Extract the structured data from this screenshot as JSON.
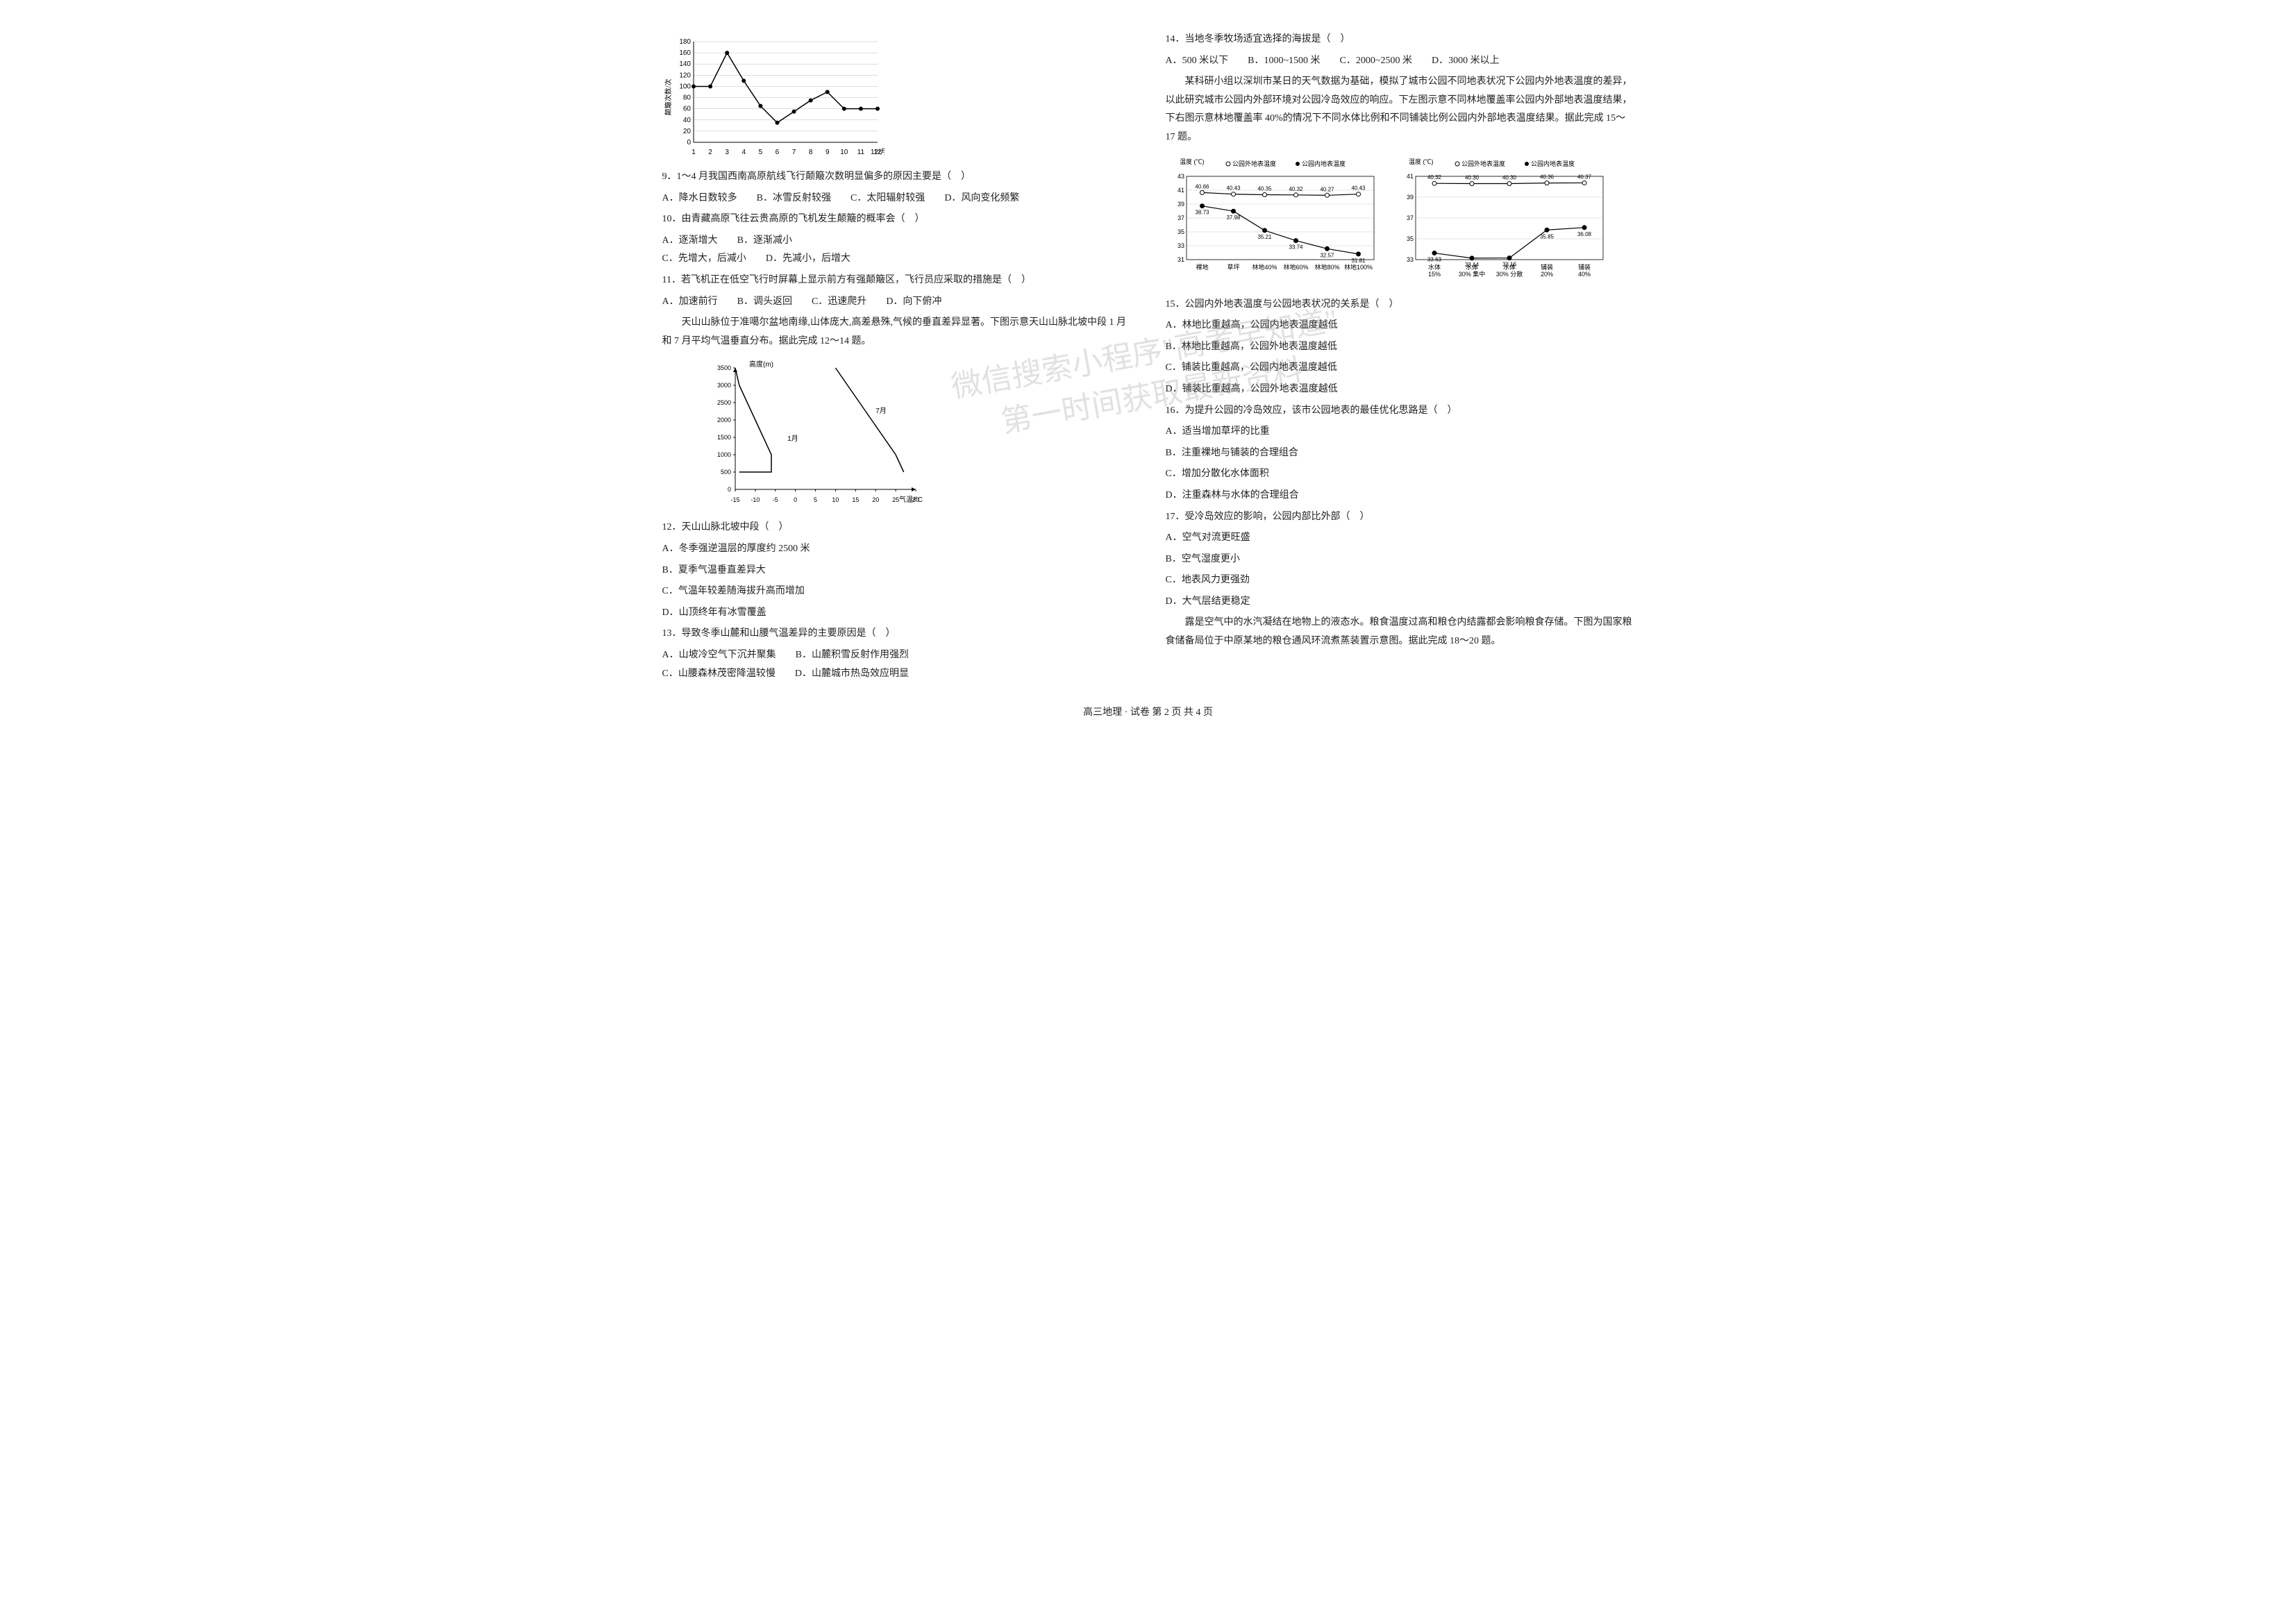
{
  "chart1": {
    "type": "line",
    "xlabel": "12/月",
    "ylabel": "颠簸次数/次",
    "ylim": [
      0,
      180
    ],
    "ytick_step": 20,
    "x": [
      1,
      2,
      3,
      4,
      5,
      6,
      7,
      8,
      9,
      10,
      11,
      12
    ],
    "y": [
      100,
      100,
      160,
      110,
      65,
      35,
      55,
      75,
      90,
      60,
      60,
      60
    ],
    "line_color": "#000000",
    "marker": "circle",
    "marker_fill": "#000000",
    "background_color": "#ffffff",
    "grid_color": "#bbbbbb",
    "axis_fontsize": 10
  },
  "q9": {
    "text": "9．1～4 月我国西南高原航线飞行颠簸次数明显偏多的原因主要是（　）",
    "options": [
      "A．降水日数较多",
      "B．冰雪反射较强",
      "C．太阳辐射较强",
      "D．风向变化频繁"
    ]
  },
  "q10": {
    "text": "10．由青藏高原飞往云贵高原的飞机发生颠簸的概率会（　）",
    "options": [
      "A．逐渐增大",
      "B．逐渐减小",
      "C．先增大，后减小",
      "D．先减小，后增大"
    ]
  },
  "q11": {
    "text": "11．若飞机正在低空飞行时屏幕上显示前方有强颠簸区，飞行员应采取的措施是（　）",
    "options": [
      "A．加速前行",
      "B．调头返回",
      "C．迅速爬升",
      "D．向下俯冲"
    ]
  },
  "passage12_14": "天山山脉位于准噶尔盆地南缘,山体庞大,高差悬殊,气候的垂直差异显著。下图示意天山山脉北坡中段 1 月和 7 月平均气温垂直分布。据此完成 12～14 题。",
  "chart2": {
    "type": "line",
    "xlabel": "气温/°C",
    "ylabel": "高度(m)",
    "xlim": [
      -15,
      30
    ],
    "xticks": [
      -15,
      -10,
      -5,
      0,
      5,
      10,
      15,
      20,
      25,
      30
    ],
    "ylim": [
      0,
      3500
    ],
    "yticks": [
      0,
      500,
      1000,
      1500,
      2000,
      2500,
      3000,
      3500
    ],
    "series": [
      {
        "label": "1月",
        "color": "#000000",
        "points": [
          [
            -14,
            500
          ],
          [
            -6,
            500
          ],
          [
            -6,
            1000
          ],
          [
            -8,
            1500
          ],
          [
            -10,
            2000
          ],
          [
            -12,
            2500
          ],
          [
            -14,
            3000
          ],
          [
            -15,
            3500
          ]
        ]
      },
      {
        "label": "7月",
        "color": "#000000",
        "points": [
          [
            27,
            500
          ],
          [
            25,
            1000
          ],
          [
            22,
            1500
          ],
          [
            19,
            2000
          ],
          [
            16,
            2500
          ],
          [
            13,
            3000
          ],
          [
            10,
            3500
          ]
        ]
      }
    ],
    "label_fontsize": 11,
    "background_color": "#ffffff"
  },
  "q12": {
    "text": "12．天山山脉北坡中段（　）",
    "options": [
      "A．冬季强逆温层的厚度约 2500 米",
      "B．夏季气温垂直差异大",
      "C．气温年较差随海拔升高而增加",
      "D．山顶终年有冰雪覆盖"
    ]
  },
  "q13": {
    "text": "13．导致冬季山麓和山腰气温差异的主要原因是（　）",
    "options": [
      "A．山坡冷空气下沉并聚集",
      "B．山麓积雪反射作用强烈",
      "C．山腰森林茂密降温较慢",
      "D．山麓城市热岛效应明显"
    ]
  },
  "q14": {
    "text": "14．当地冬季牧场适宜选择的海拔是（　）",
    "options": [
      "A．500 米以下",
      "B．1000~1500 米",
      "C．2000~2500 米",
      "D．3000 米以上"
    ]
  },
  "passage15_17": "某科研小组以深圳市某日的天气数据为基础，模拟了城市公园不同地表状况下公园内外地表温度的差异，以此研究城市公园内外部环境对公园冷岛效应的响应。下左图示意不同林地覆盖率公园内外部地表温度结果，下右图示意林地覆盖率 40%的情况下不同水体比例和不同铺装比例公园内外部地表温度结果。据此完成 15～17 题。",
  "chart3_left": {
    "type": "line",
    "ylabel": "温度 (℃)",
    "ylim": [
      31,
      43
    ],
    "ytick_step": 2,
    "categories": [
      "裸地",
      "草坪",
      "林地40%",
      "林地60%",
      "林地80%",
      "林地100%"
    ],
    "series": [
      {
        "label": "公园外地表温度",
        "marker": "open_circle",
        "color": "#000000",
        "values": [
          40.66,
          40.43,
          40.35,
          40.32,
          40.27,
          40.43
        ]
      },
      {
        "label": "公园内地表温度",
        "marker": "filled_circle",
        "color": "#000000",
        "values": [
          38.73,
          37.98,
          35.21,
          33.74,
          32.57,
          31.81
        ]
      }
    ],
    "label_fontsize": 9,
    "grid_color": "#cccccc",
    "background_color": "#ffffff"
  },
  "chart3_right": {
    "type": "line",
    "ylabel": "温度 (℃)",
    "ylim": [
      33,
      41
    ],
    "ytick_step": 2,
    "categories": [
      "水体\n15%",
      "水体\n30% 集中",
      "水体\n30% 分散",
      "铺装\n20%",
      "铺装\n40%"
    ],
    "series": [
      {
        "label": "公园外地表温度",
        "marker": "open_circle",
        "color": "#000000",
        "values": [
          40.32,
          40.3,
          40.3,
          40.36,
          40.37
        ]
      },
      {
        "label": "公园内地表温度",
        "marker": "filled_circle",
        "color": "#000000",
        "values": [
          33.63,
          33.14,
          33.16,
          35.85,
          36.08
        ]
      }
    ],
    "label_fontsize": 9,
    "grid_color": "#cccccc",
    "background_color": "#ffffff"
  },
  "q15": {
    "text": "15．公园内外地表温度与公园地表状况的关系是（　）",
    "options": [
      "A．林地比重越高，公园内地表温度越低",
      "B．林地比重越高，公园外地表温度越低",
      "C．铺装比重越高，公园内地表温度越低",
      "D．铺装比重越高，公园外地表温度越低"
    ]
  },
  "q16": {
    "text": "16．为提升公园的冷岛效应，该市公园地表的最佳优化思路是（　）",
    "options": [
      "A．适当增加草坪的比重",
      "B．注重裸地与铺装的合理组合",
      "C．增加分散化水体面积",
      "D．注重森林与水体的合理组合"
    ]
  },
  "q17": {
    "text": "17．受冷岛效应的影响，公园内部比外部（　）",
    "options": [
      "A．空气对流更旺盛",
      "B．空气湿度更小",
      "C．地表风力更强劲",
      "D．大气层结更稳定"
    ]
  },
  "passage18_20": "露是空气中的水汽凝结在地物上的液态水。粮食温度过高和粮仓内结露都会影响粮食存储。下图为国家粮食储备局位于中原某地的粮仓通风环流煮蒸装置示意图。据此完成 18～20 题。",
  "footer": "高三地理 · 试卷 第 2 页 共 4 页",
  "watermark": {
    "line1": "微信搜索小程序\"高考早知道\"",
    "line2": "第一时间获取最新资料"
  }
}
